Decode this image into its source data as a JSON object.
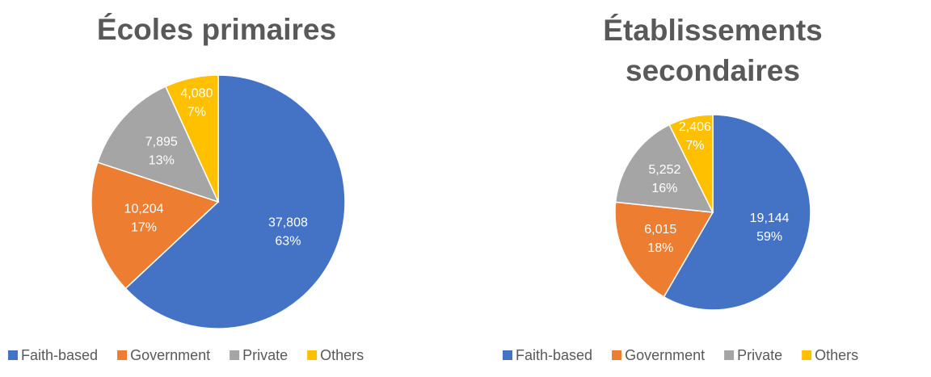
{
  "chart_data": [
    {
      "type": "pie",
      "title": "Écoles primaires",
      "categories": [
        "Faith-based",
        "Government",
        "Private",
        "Others"
      ],
      "values": [
        37808,
        10204,
        7895,
        4080
      ],
      "value_labels": [
        "37,808",
        "10,204",
        "7,895",
        "4,080"
      ],
      "percent_labels": [
        "63%",
        "17%",
        "13%",
        "7%"
      ],
      "colors": [
        "#4472c4",
        "#ed7d31",
        "#a5a5a5",
        "#ffc000"
      ],
      "legend": "bottom"
    },
    {
      "type": "pie",
      "title": "Établissements secondaires",
      "categories": [
        "Faith-based",
        "Government",
        "Private",
        "Others"
      ],
      "values": [
        19144,
        6015,
        5252,
        2406
      ],
      "value_labels": [
        "19,144",
        "6,015",
        "5,252",
        "2,406"
      ],
      "percent_labels": [
        "59%",
        "18%",
        "16%",
        "7%"
      ],
      "colors": [
        "#4472c4",
        "#ed7d31",
        "#a5a5a5",
        "#ffc000"
      ],
      "legend": "bottom"
    }
  ]
}
